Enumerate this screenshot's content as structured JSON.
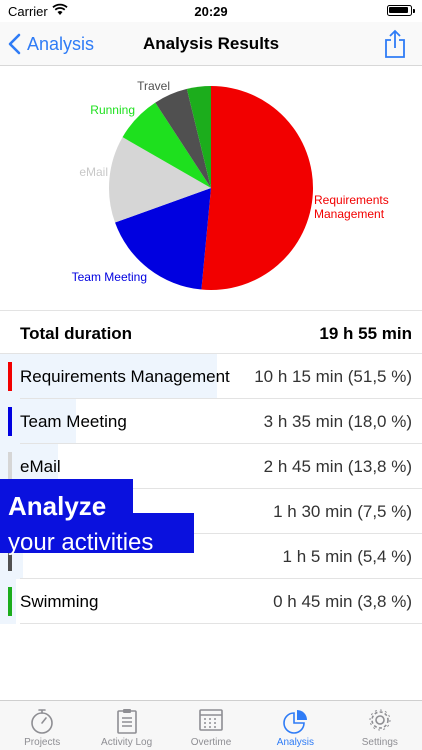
{
  "status_bar": {
    "carrier": "Carrier",
    "time": "20:29"
  },
  "nav": {
    "back_label": "Analysis",
    "title": "Analysis Results"
  },
  "chart_data": {
    "type": "pie",
    "slices": [
      {
        "label": "Requirements Management",
        "value": 51.5,
        "color": "#f20000"
      },
      {
        "label": "Team Meeting",
        "value": 18.0,
        "color": "#0000e0"
      },
      {
        "label": "eMail",
        "value": 13.8,
        "color": "#d6d6d6"
      },
      {
        "label": "Running",
        "value": 7.5,
        "color": "#1ee01e"
      },
      {
        "label": "Travel",
        "value": 5.4,
        "color": "#505050"
      },
      {
        "label": "",
        "value": 3.8,
        "color": "#1cad1c"
      }
    ],
    "slice_label_colors": [
      "#f20000",
      "#0000e0",
      "#c8c8c8",
      "#1ee01e",
      "#505050"
    ]
  },
  "summary": {
    "total_label": "Total duration",
    "total_value": "19 h 55 min"
  },
  "rows": [
    {
      "name": "Requirements Management",
      "duration": "10 h 15 min (51,5 %)",
      "color": "#f20000",
      "share": 0.515
    },
    {
      "name": "Team Meeting",
      "duration": "3 h 35 min (18,0 %)",
      "color": "#0000e0",
      "share": 0.18
    },
    {
      "name": "eMail",
      "duration": "2 h 45 min (13,8 %)",
      "color": "#d6d6d6",
      "share": 0.138
    },
    {
      "name": "",
      "duration": "1 h 30 min (7,5 %)",
      "color": "#1ee01e",
      "share": 0.075
    },
    {
      "name": "",
      "duration": "1 h 5 min (5,4 %)",
      "color": "#505050",
      "share": 0.054
    },
    {
      "name": "Swimming",
      "duration": "0 h 45 min (3,8 %)",
      "color": "#1cad1c",
      "share": 0.038
    }
  ],
  "promo": {
    "line1": "Analyze",
    "line2": "your activities"
  },
  "tabs": [
    {
      "label": "Projects",
      "icon": "stopwatch-icon",
      "active": false
    },
    {
      "label": "Activity Log",
      "icon": "clipboard-icon",
      "active": false
    },
    {
      "label": "Overtime",
      "icon": "calendar-icon",
      "active": false
    },
    {
      "label": "Analysis",
      "icon": "pie-chart-icon",
      "active": true
    },
    {
      "label": "Settings",
      "icon": "gear-icon",
      "active": false
    }
  ],
  "colors": {
    "accent": "#2f7cf6",
    "promo": "#0a11de",
    "row_highlight": "#eef5fd"
  }
}
